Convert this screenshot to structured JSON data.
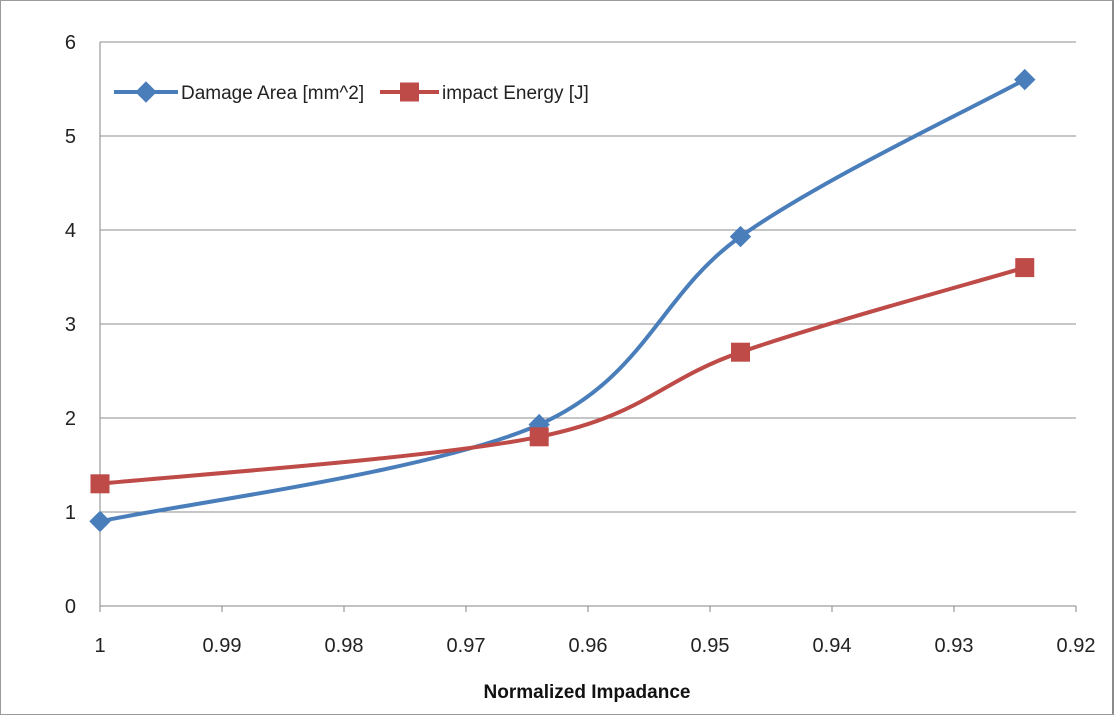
{
  "chart_data": {
    "type": "line",
    "title": "",
    "xlabel": "Normalized Impadance",
    "ylabel": "",
    "x_reversed": true,
    "xlim": [
      0.92,
      1
    ],
    "ylim": [
      0,
      6
    ],
    "x_ticks": [
      "1",
      "0.99",
      "0.98",
      "0.97",
      "0.96",
      "0.95",
      "0.94",
      "0.93",
      "0.92"
    ],
    "y_ticks": [
      "0",
      "1",
      "2",
      "3",
      "4",
      "5",
      "6"
    ],
    "grid": "horizontal",
    "legend_position": "top-left",
    "smooth": true,
    "series": [
      {
        "name": "Damage Area [mm^2]",
        "color": "#4a7ebb",
        "marker": "diamond",
        "points": [
          {
            "x": 1.0,
            "y": 0.9
          },
          {
            "x": 0.964,
            "y": 1.93
          },
          {
            "x": 0.9475,
            "y": 3.93
          },
          {
            "x": 0.9242,
            "y": 5.6
          }
        ]
      },
      {
        "name": "impact Energy [J]",
        "color": "#be4b48",
        "marker": "square",
        "points": [
          {
            "x": 1.0,
            "y": 1.3
          },
          {
            "x": 0.964,
            "y": 1.8
          },
          {
            "x": 0.9475,
            "y": 2.7
          },
          {
            "x": 0.9242,
            "y": 3.6
          }
        ]
      }
    ]
  }
}
